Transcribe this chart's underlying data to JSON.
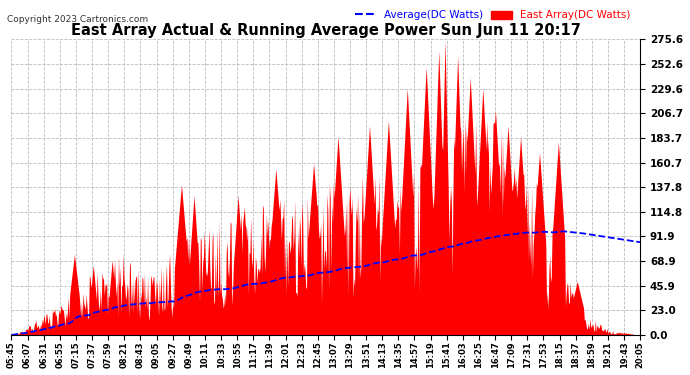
{
  "title": "East Array Actual & Running Average Power Sun Jun 11 20:17",
  "copyright": "Copyright 2023 Cartronics.com",
  "legend_avg": "Average(DC Watts)",
  "legend_east": "East Array(DC Watts)",
  "yticks": [
    0.0,
    23.0,
    45.9,
    68.9,
    91.9,
    114.8,
    137.8,
    160.7,
    183.7,
    206.7,
    229.6,
    252.6,
    275.6
  ],
  "ymax": 275.6,
  "bg_color": "#ffffff",
  "grid_color": "#bbbbbb",
  "area_color": "#ff0000",
  "avg_line_color": "#0000ff",
  "title_color": "#000000",
  "copyright_color": "#333333",
  "xtick_labels": [
    "05:45",
    "06:07",
    "06:31",
    "06:55",
    "07:15",
    "07:37",
    "07:59",
    "08:21",
    "08:43",
    "09:05",
    "09:27",
    "09:49",
    "10:11",
    "10:33",
    "10:55",
    "11:17",
    "11:39",
    "12:01",
    "12:23",
    "12:45",
    "13:07",
    "13:29",
    "13:51",
    "14:13",
    "14:35",
    "14:57",
    "15:19",
    "15:41",
    "16:03",
    "16:25",
    "16:47",
    "17:09",
    "17:31",
    "17:53",
    "18:15",
    "18:37",
    "18:59",
    "19:21",
    "19:43",
    "20:05"
  ],
  "figsize": [
    6.9,
    3.75
  ],
  "dpi": 100
}
